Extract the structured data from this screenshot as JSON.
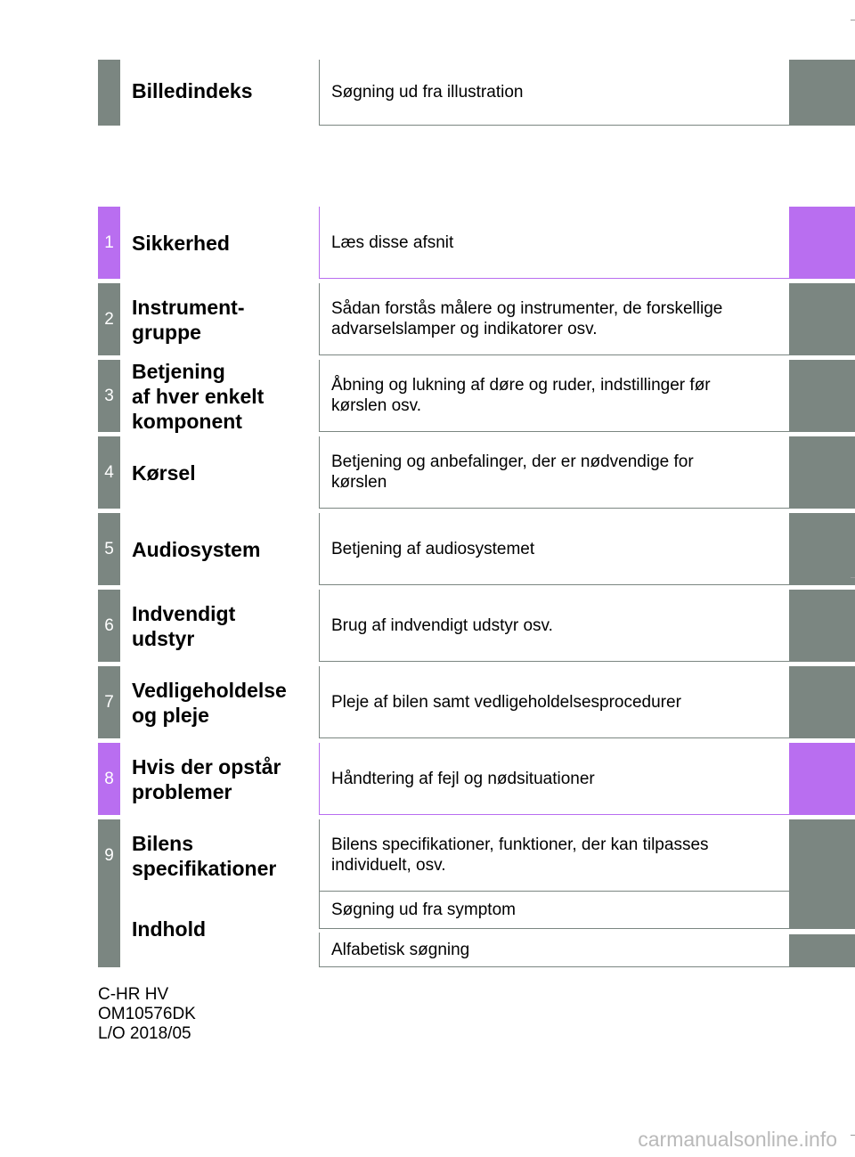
{
  "accent_colors": {
    "gray": "#7b8681",
    "purple": "#b96ef0"
  },
  "index": {
    "title": "Billedindeks",
    "description": "Søgning ud fra illustration"
  },
  "chapters": [
    {
      "number": "1",
      "title": "Sikkerhed",
      "description": "Læs disse afsnit",
      "highlight": true
    },
    {
      "number": "2",
      "title": "Instrument-\ngruppe",
      "description": "Sådan forstås målere og instrumenter, de forskellige\nadvarselslamper og indikatorer osv.",
      "highlight": false
    },
    {
      "number": "3",
      "title": "Betjening\naf hver enkelt\nkomponent",
      "description": "Åbning og lukning af døre og ruder, indstillinger før\nkørslen osv.",
      "highlight": false
    },
    {
      "number": "4",
      "title": "Kørsel",
      "description": "Betjening og anbefalinger, der er nødvendige for\nkørslen",
      "highlight": false
    },
    {
      "number": "5",
      "title": "Audiosystem",
      "description": "Betjening af audiosystemet",
      "highlight": false
    },
    {
      "number": "6",
      "title": "Indvendigt\nudstyr",
      "description": "Brug af indvendigt udstyr osv.",
      "highlight": false
    },
    {
      "number": "7",
      "title": "Vedligeholdelse\nog pleje",
      "description": "Pleje af bilen samt vedligeholdelsesprocedurer",
      "highlight": false
    },
    {
      "number": "8",
      "title": "Hvis der opstår\nproblemer",
      "description": "Håndtering af fejl og nødsituationer",
      "highlight": true
    },
    {
      "number": "9",
      "title": "Bilens\nspecifikationer",
      "description": "Bilens specifikationer, funktioner, der kan tilpasses\nindividuelt, osv.",
      "highlight": false
    }
  ],
  "contents": {
    "title": "Indhold",
    "entries": [
      "Søgning ud fra symptom",
      "Alfabetisk søgning"
    ]
  },
  "footer": {
    "lines": [
      "C-HR HV",
      "OM10576DK",
      "L/O 2018/05"
    ]
  },
  "watermark": "carmanualsonline.info"
}
